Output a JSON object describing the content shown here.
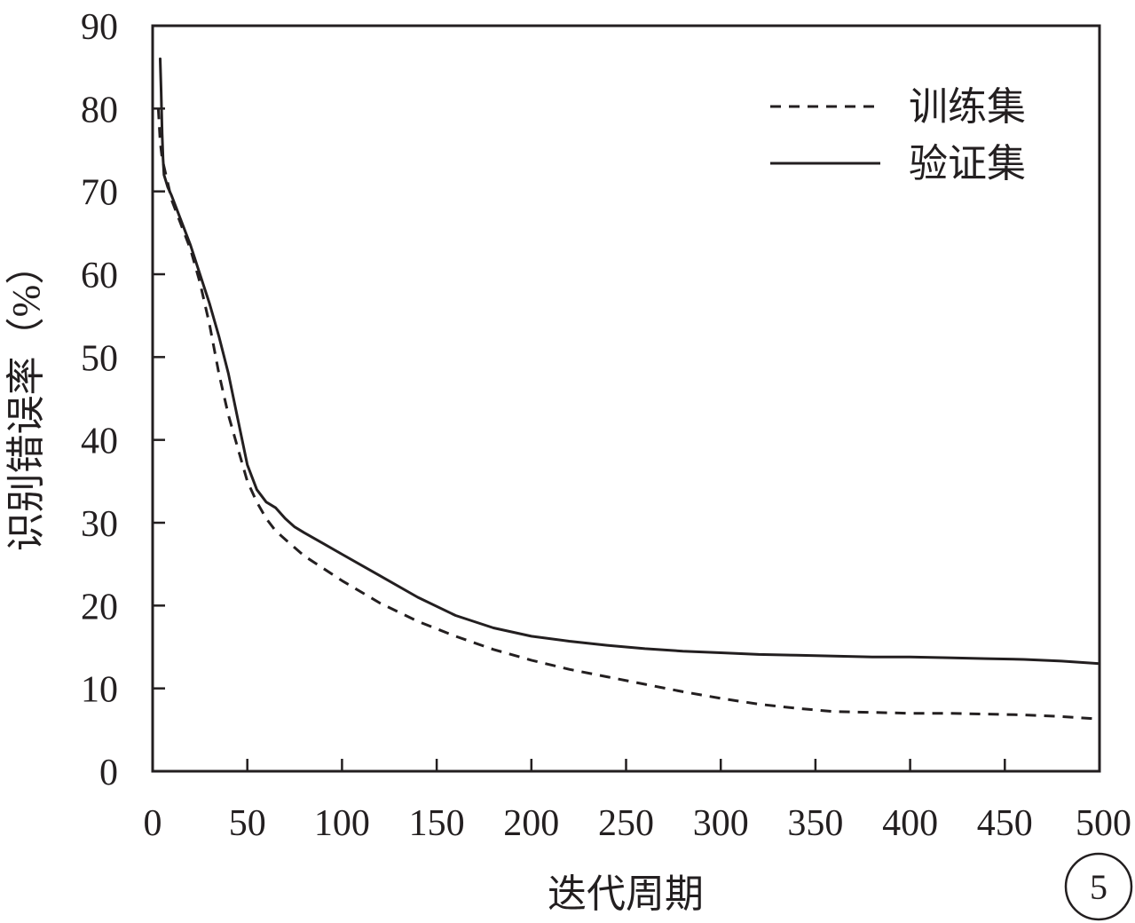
{
  "chart_data": {
    "type": "line",
    "xlabel": "迭代周期",
    "ylabel": "识别错误率（%）",
    "xlim": [
      0,
      500
    ],
    "ylim": [
      0,
      90
    ],
    "xticks": [
      0,
      50,
      100,
      150,
      200,
      250,
      300,
      350,
      400,
      450,
      500
    ],
    "yticks": [
      0,
      10,
      20,
      30,
      40,
      50,
      60,
      70,
      80,
      90
    ],
    "grid": false,
    "legend_position": "top-right",
    "panel_label": "5",
    "series": [
      {
        "name": "训练集",
        "style": "dashed",
        "color": "#231f20",
        "x": [
          3,
          4,
          5,
          6,
          8,
          10,
          15,
          20,
          25,
          30,
          35,
          40,
          45,
          50,
          55,
          60,
          65,
          70,
          75,
          80,
          90,
          100,
          120,
          140,
          160,
          180,
          200,
          220,
          240,
          260,
          280,
          300,
          320,
          340,
          360,
          380,
          400,
          420,
          440,
          460,
          480,
          500
        ],
        "y": [
          80,
          76,
          74,
          73,
          71,
          69,
          66,
          63,
          59,
          54,
          48,
          43,
          39,
          35,
          32.5,
          30.5,
          29,
          28,
          27,
          26,
          24.5,
          23,
          20.3,
          18.1,
          16.3,
          14.7,
          13.4,
          12.3,
          11.4,
          10.5,
          9.6,
          8.8,
          8.1,
          7.6,
          7.2,
          7.1,
          7.0,
          7.0,
          6.9,
          6.8,
          6.6,
          6.3
        ]
      },
      {
        "name": "验证集",
        "style": "solid",
        "color": "#231f20",
        "x": [
          4,
          4.5,
          5,
          5.5,
          6,
          8,
          10,
          15,
          20,
          25,
          30,
          35,
          40,
          45,
          50,
          55,
          60,
          65,
          70,
          75,
          80,
          90,
          100,
          120,
          140,
          160,
          180,
          200,
          220,
          240,
          260,
          280,
          300,
          320,
          340,
          360,
          380,
          400,
          420,
          440,
          460,
          480,
          500
        ],
        "y": [
          86,
          82,
          77,
          74,
          72,
          70.5,
          69.5,
          66.5,
          63.5,
          60,
          56.5,
          52.5,
          48,
          42.5,
          37,
          34,
          32.5,
          31.8,
          30.5,
          29.5,
          28.8,
          27.5,
          26.2,
          23.6,
          21,
          18.8,
          17.3,
          16.3,
          15.7,
          15.2,
          14.8,
          14.5,
          14.3,
          14.1,
          14.0,
          13.9,
          13.8,
          13.8,
          13.7,
          13.6,
          13.5,
          13.3,
          13.0
        ]
      }
    ]
  }
}
